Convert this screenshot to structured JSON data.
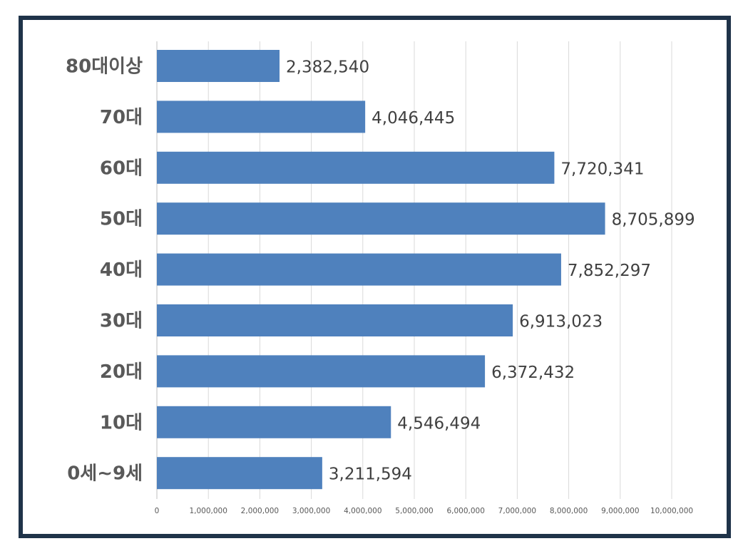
{
  "chart_data": {
    "type": "bar",
    "orientation": "horizontal",
    "categories": [
      "80대이상",
      "70대",
      "60대",
      "50대",
      "40대",
      "30대",
      "20대",
      "10대",
      "0세~9세"
    ],
    "values": [
      2382540,
      4046445,
      7720341,
      8705899,
      7852297,
      6913023,
      6372432,
      4546494,
      3211594
    ],
    "value_labels": [
      "2,382,540",
      "4,046,445",
      "7,720,341",
      "8,705,899",
      "7,852,297",
      "6,913,023",
      "6,372,432",
      "4,546,494",
      "3,211,594"
    ],
    "x_ticks": [
      "0",
      "1,000,000",
      "2,000,000",
      "3,000,000",
      "4,000,000",
      "5,000,000",
      "6,000,000",
      "7,000,000",
      "8,000,000",
      "9,000,000",
      "10,000,000"
    ],
    "xlim": [
      0,
      10000000
    ],
    "grid": true,
    "bar_color": "#4f81bd",
    "title": "",
    "xlabel": "",
    "ylabel": ""
  }
}
